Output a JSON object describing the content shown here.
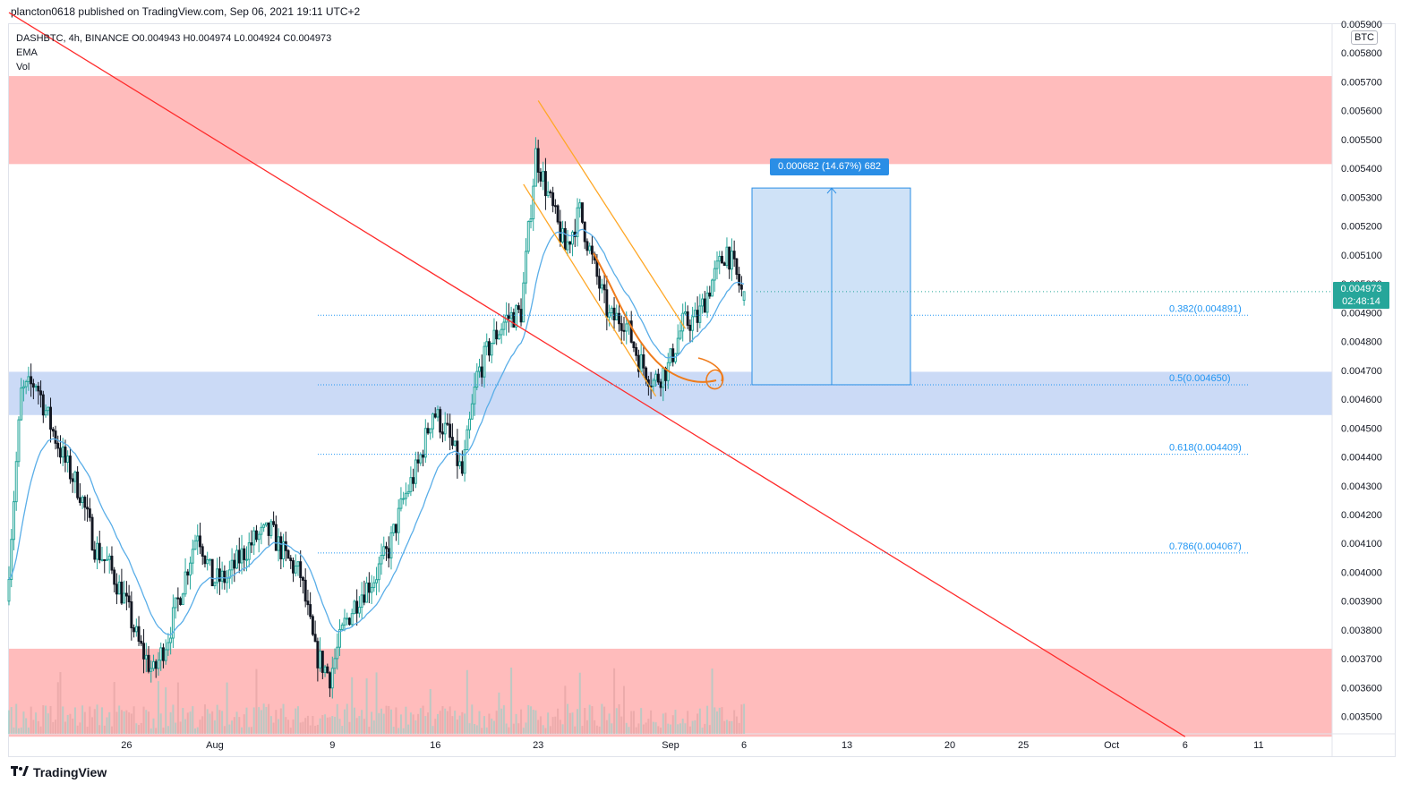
{
  "header": {
    "published": "plancton0618 published on TradingView.com, Sep 06, 2021 19:11 UTC+2"
  },
  "legend": {
    "symbol_line": "DASHBTC, 4h, BINANCE  O0.004943  H0.004974  L0.004924  C0.004973",
    "ema_label": "EMA",
    "vol_label": "Vol"
  },
  "brand": {
    "name": "TradingView"
  },
  "chart_data": {
    "type": "candlestick",
    "symbol": "DASHBTC",
    "interval": "4h",
    "exchange": "BINANCE",
    "ohlc": {
      "open": 0.004943,
      "high": 0.004974,
      "low": 0.004924,
      "close": 0.004973
    },
    "currency_label": "BTC",
    "current_price": "0.004973",
    "countdown": "02:48:14",
    "y_ticks": [
      "0.005900",
      "0.005800",
      "0.005700",
      "0.005600",
      "0.005500",
      "0.005400",
      "0.005300",
      "0.005200",
      "0.005100",
      "0.005000",
      "0.004900",
      "0.004800",
      "0.004700",
      "0.004600",
      "0.004500",
      "0.004400",
      "0.004300",
      "0.004200",
      "0.004100",
      "0.004000",
      "0.003900",
      "0.003800",
      "0.003700",
      "0.003600",
      "0.003500"
    ],
    "ylim": [
      0.00344,
      0.0059
    ],
    "x_ticks": [
      "26",
      "Aug",
      "9",
      "16",
      "23",
      "Sep",
      "6",
      "13",
      "20",
      "25",
      "Oct",
      "6",
      "11"
    ],
    "x_tick_dates": [
      "2021-07-26",
      "2021-08-01",
      "2021-08-09",
      "2021-08-16",
      "2021-08-23",
      "2021-09-01",
      "2021-09-06",
      "2021-09-13",
      "2021-09-20",
      "2021-09-25",
      "2021-10-01",
      "2021-10-06",
      "2021-10-11"
    ],
    "zones": [
      {
        "kind": "resistance",
        "y1": 0.005415,
        "y2": 0.00572,
        "color": "#ffb8b8"
      },
      {
        "kind": "support",
        "y1": 0.004545,
        "y2": 0.004695,
        "color": "#c8d8f6"
      },
      {
        "kind": "support",
        "y1": 0.00343,
        "y2": 0.003735,
        "color": "#ffb8b8"
      }
    ],
    "fib_levels": [
      {
        "ratio": "0.382",
        "price": 0.004891,
        "label": "0.382(0.004891)"
      },
      {
        "ratio": "0.5",
        "price": 0.00465,
        "label": "0.5(0.004650)"
      },
      {
        "ratio": "0.618",
        "price": 0.004409,
        "label": "0.618(0.004409)"
      },
      {
        "ratio": "0.786",
        "price": 0.004067,
        "label": "0.786(0.004067)"
      }
    ],
    "measure": {
      "from": 0.00465,
      "to": 0.005332,
      "label": "0.000682 (14.67%) 682"
    },
    "trendline": {
      "from": {
        "date": "2021-07-18",
        "price": 0.00594
      },
      "to": {
        "date": "2021-10-06",
        "price": 0.00343
      }
    },
    "channel": [
      {
        "from": {
          "date": "2021-08-23",
          "price": 0.005635
        },
        "to": {
          "date": "2021-09-02",
          "price": 0.004845
        }
      },
      {
        "from": {
          "date": "2021-08-22",
          "price": 0.005345
        },
        "to": {
          "date": "2021-08-31",
          "price": 0.00461
        }
      }
    ],
    "colors": {
      "up": "#26a69a",
      "down": "#131722",
      "ema": "#5aaee8",
      "trend": "#ff2b2b",
      "channel": "#ffa726",
      "fib": "#2196f3"
    },
    "closes": [
      {
        "date": "2021-07-18",
        "close": 0.0039
      },
      {
        "date": "2021-07-19",
        "close": 0.00462
      },
      {
        "date": "2021-07-20",
        "close": 0.00466
      },
      {
        "date": "2021-07-21",
        "close": 0.00451
      },
      {
        "date": "2021-07-22",
        "close": 0.00438
      },
      {
        "date": "2021-07-23",
        "close": 0.00428
      },
      {
        "date": "2021-07-24",
        "close": 0.00409
      },
      {
        "date": "2021-07-25",
        "close": 0.00402
      },
      {
        "date": "2021-07-26",
        "close": 0.00391
      },
      {
        "date": "2021-07-27",
        "close": 0.00375
      },
      {
        "date": "2021-07-28",
        "close": 0.00365
      },
      {
        "date": "2021-07-29",
        "close": 0.00378
      },
      {
        "date": "2021-07-30",
        "close": 0.00396
      },
      {
        "date": "2021-07-31",
        "close": 0.00415
      },
      {
        "date": "2021-08-01",
        "close": 0.00397
      },
      {
        "date": "2021-08-02",
        "close": 0.00398
      },
      {
        "date": "2021-08-03",
        "close": 0.00406
      },
      {
        "date": "2021-08-04",
        "close": 0.00412
      },
      {
        "date": "2021-08-05",
        "close": 0.00414
      },
      {
        "date": "2021-08-06",
        "close": 0.00405
      },
      {
        "date": "2021-08-07",
        "close": 0.00399
      },
      {
        "date": "2021-08-08",
        "close": 0.00372
      },
      {
        "date": "2021-08-09",
        "close": 0.00364
      },
      {
        "date": "2021-08-10",
        "close": 0.00382
      },
      {
        "date": "2021-08-11",
        "close": 0.00392
      },
      {
        "date": "2021-08-12",
        "close": 0.00398
      },
      {
        "date": "2021-08-13",
        "close": 0.00408
      },
      {
        "date": "2021-08-14",
        "close": 0.00425
      },
      {
        "date": "2021-08-15",
        "close": 0.00437
      },
      {
        "date": "2021-08-16",
        "close": 0.00456
      },
      {
        "date": "2021-08-17",
        "close": 0.00448
      },
      {
        "date": "2021-08-18",
        "close": 0.00434
      },
      {
        "date": "2021-08-19",
        "close": 0.00468
      },
      {
        "date": "2021-08-20",
        "close": 0.0048
      },
      {
        "date": "2021-08-21",
        "close": 0.00488
      },
      {
        "date": "2021-08-22",
        "close": 0.0049
      },
      {
        "date": "2021-08-23",
        "close": 0.00545
      },
      {
        "date": "2021-08-24",
        "close": 0.00528
      },
      {
        "date": "2021-08-25",
        "close": 0.00512
      },
      {
        "date": "2021-08-26",
        "close": 0.00525
      },
      {
        "date": "2021-08-27",
        "close": 0.00505
      },
      {
        "date": "2021-08-28",
        "close": 0.00488
      },
      {
        "date": "2021-08-29",
        "close": 0.00488
      },
      {
        "date": "2021-08-30",
        "close": 0.00474
      },
      {
        "date": "2021-08-31",
        "close": 0.00466
      },
      {
        "date": "2021-09-01",
        "close": 0.00471
      },
      {
        "date": "2021-09-02",
        "close": 0.00486
      },
      {
        "date": "2021-09-03",
        "close": 0.00488
      },
      {
        "date": "2021-09-04",
        "close": 0.00501
      },
      {
        "date": "2021-09-05",
        "close": 0.00512
      },
      {
        "date": "2021-09-06",
        "close": 0.004973
      }
    ]
  }
}
